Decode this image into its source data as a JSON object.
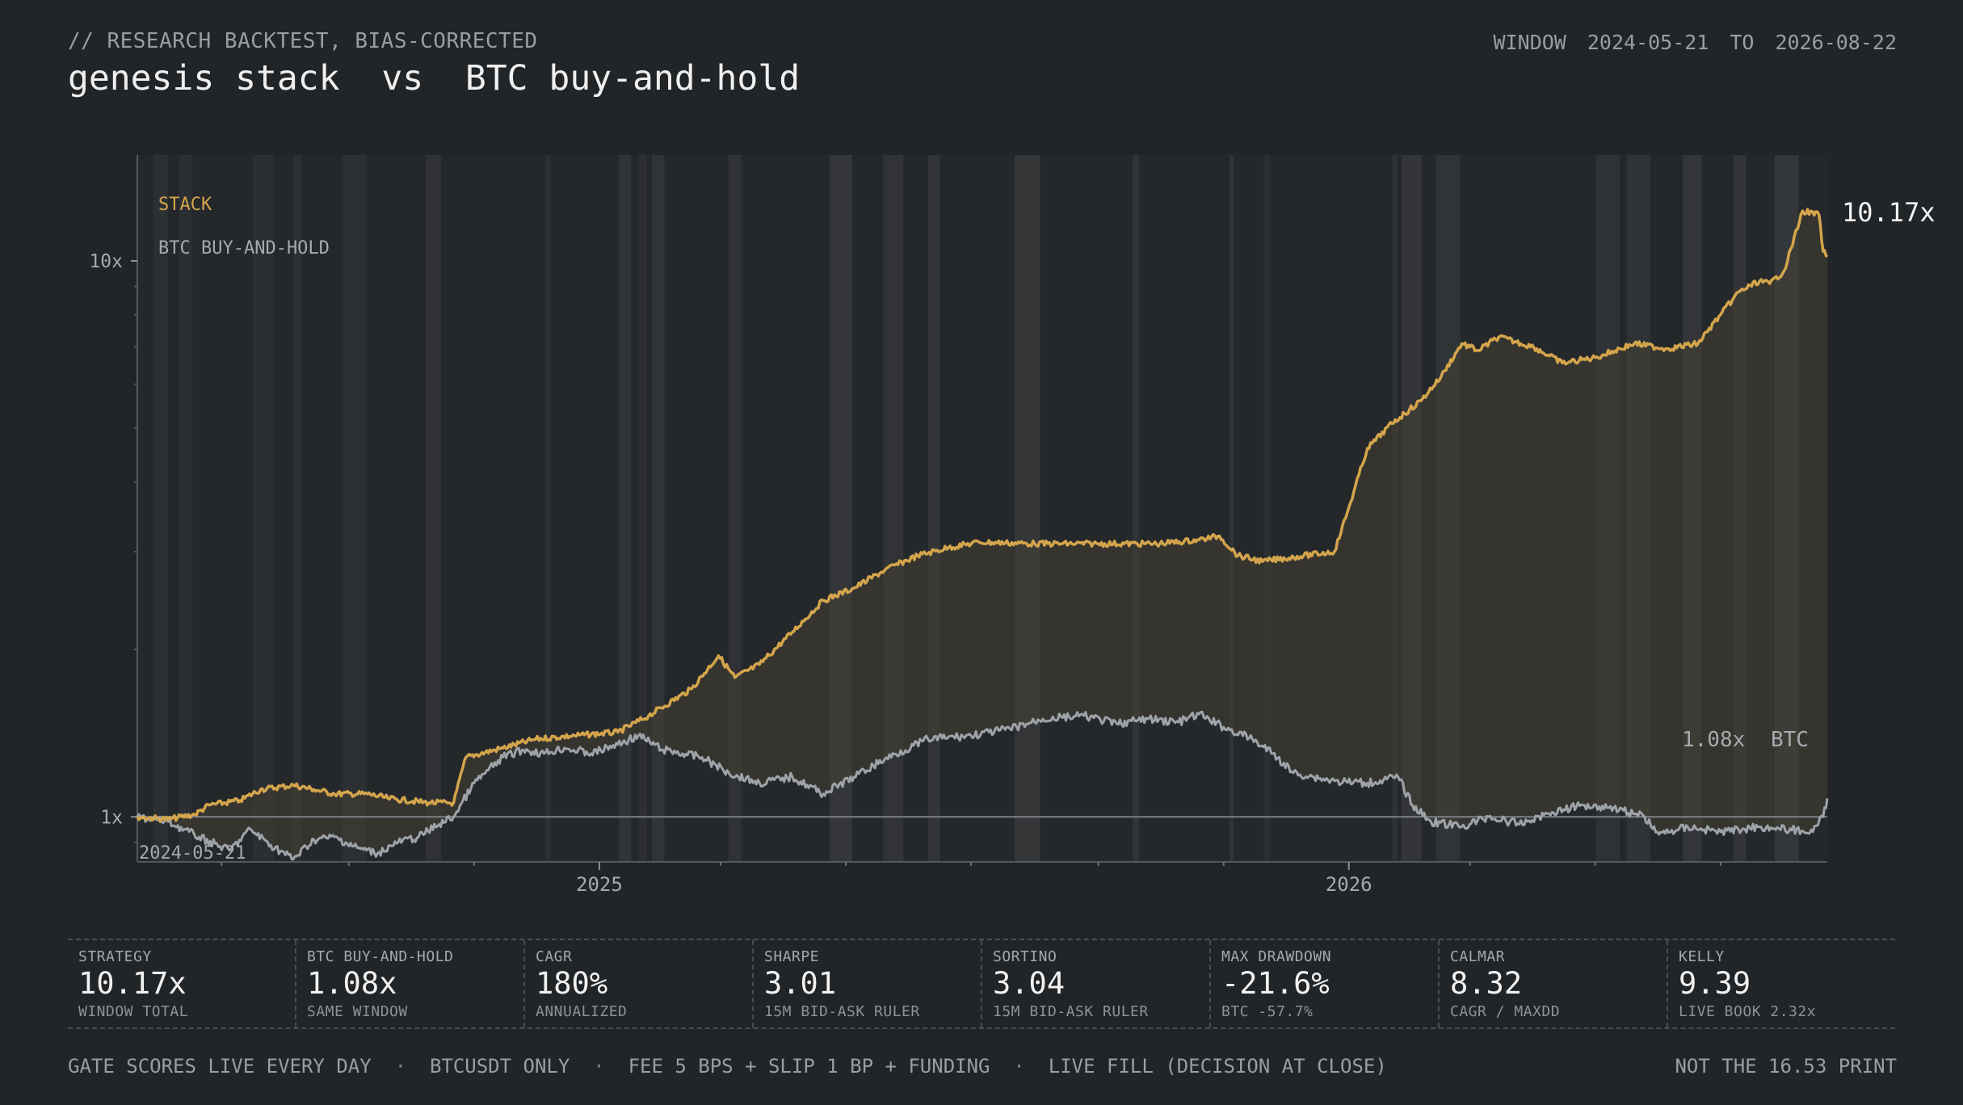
{
  "header": {
    "kicker": "// RESEARCH BACKTEST, BIAS-CORRECTED",
    "title": "genesis stack  vs  BTC buy-and-hold",
    "window_label": "WINDOW",
    "window_start": "2024-05-21",
    "window_to": "TO",
    "window_end": "2026-08-22"
  },
  "colors": {
    "background": "#222528",
    "stack": "#d4a54c",
    "btc": "#9ea3a9",
    "regime_band": "#3a3c3f",
    "baseline": "#7d8186"
  },
  "chart_data": {
    "type": "line",
    "y_scale": "log",
    "ylim": [
      0.83,
      15.5
    ],
    "xlim": [
      "2024-05-21",
      "2026-08-22"
    ],
    "y_ticks": [
      {
        "value": 1,
        "label": "1x"
      },
      {
        "value": 10,
        "label": "10x"
      }
    ],
    "x_ticks": [
      {
        "date": "2025-01-01",
        "label": "2025"
      },
      {
        "date": "2026-01-01",
        "label": "2026"
      }
    ],
    "start_label": "2024-05-21",
    "legend": {
      "placement": "top-left",
      "entries": [
        "STACK",
        "BTC BUY-AND-HOLD"
      ]
    },
    "series": [
      {
        "name": "STACK",
        "end_label": "10.17x",
        "final": 10.17,
        "points": [
          [
            "2024-05-21",
            1.0
          ],
          [
            "2024-06-05",
            0.99
          ],
          [
            "2024-06-18",
            1.01
          ],
          [
            "2024-06-25",
            1.05
          ],
          [
            "2024-07-10",
            1.07
          ],
          [
            "2024-07-20",
            1.12
          ],
          [
            "2024-08-05",
            1.14
          ],
          [
            "2024-08-15",
            1.12
          ],
          [
            "2024-08-25",
            1.1
          ],
          [
            "2024-09-10",
            1.1
          ],
          [
            "2024-09-20",
            1.08
          ],
          [
            "2024-10-10",
            1.06
          ],
          [
            "2024-10-22",
            1.06
          ],
          [
            "2024-10-28",
            1.28
          ],
          [
            "2024-11-15",
            1.33
          ],
          [
            "2024-12-01",
            1.38
          ],
          [
            "2024-12-20",
            1.4
          ],
          [
            "2025-01-10",
            1.42
          ],
          [
            "2025-01-25",
            1.52
          ],
          [
            "2025-02-15",
            1.7
          ],
          [
            "2025-02-28",
            1.95
          ],
          [
            "2025-03-08",
            1.78
          ],
          [
            "2025-03-20",
            1.88
          ],
          [
            "2025-04-05",
            2.15
          ],
          [
            "2025-04-20",
            2.45
          ],
          [
            "2025-05-05",
            2.58
          ],
          [
            "2025-05-20",
            2.78
          ],
          [
            "2025-06-05",
            2.95
          ],
          [
            "2025-06-20",
            3.05
          ],
          [
            "2025-07-05",
            3.12
          ],
          [
            "2025-08-01",
            3.1
          ],
          [
            "2025-09-01",
            3.1
          ],
          [
            "2025-10-01",
            3.1
          ],
          [
            "2025-10-20",
            3.15
          ],
          [
            "2025-10-30",
            3.2
          ],
          [
            "2025-11-08",
            2.95
          ],
          [
            "2025-11-20",
            2.88
          ],
          [
            "2025-12-10",
            2.95
          ],
          [
            "2025-12-25",
            3.0
          ],
          [
            "2026-01-01",
            3.6
          ],
          [
            "2026-01-10",
            4.6
          ],
          [
            "2026-01-22",
            5.1
          ],
          [
            "2026-02-05",
            5.6
          ],
          [
            "2026-02-15",
            6.2
          ],
          [
            "2026-02-25",
            7.1
          ],
          [
            "2026-03-05",
            6.9
          ],
          [
            "2026-03-15",
            7.3
          ],
          [
            "2026-04-01",
            7.0
          ],
          [
            "2026-04-15",
            6.55
          ],
          [
            "2026-05-01",
            6.7
          ],
          [
            "2026-05-20",
            7.1
          ],
          [
            "2026-06-05",
            6.95
          ],
          [
            "2026-06-20",
            7.1
          ],
          [
            "2026-07-01",
            8.0
          ],
          [
            "2026-07-10",
            8.8
          ],
          [
            "2026-07-20",
            9.2
          ],
          [
            "2026-07-25",
            9.1
          ],
          [
            "2026-08-01",
            9.6
          ],
          [
            "2026-08-10",
            12.3
          ],
          [
            "2026-08-18",
            12.1
          ],
          [
            "2026-08-20",
            10.4
          ],
          [
            "2026-08-22",
            10.17
          ]
        ]
      },
      {
        "name": "BTC",
        "end_label": "1.08x",
        "final": 1.08,
        "points": [
          [
            "2024-05-21",
            1.0
          ],
          [
            "2024-06-05",
            0.98
          ],
          [
            "2024-06-20",
            0.92
          ],
          [
            "2024-07-05",
            0.87
          ],
          [
            "2024-07-15",
            0.95
          ],
          [
            "2024-07-25",
            0.89
          ],
          [
            "2024-08-05",
            0.84
          ],
          [
            "2024-08-15",
            0.91
          ],
          [
            "2024-08-25",
            0.92
          ],
          [
            "2024-09-05",
            0.88
          ],
          [
            "2024-09-15",
            0.86
          ],
          [
            "2024-09-25",
            0.9
          ],
          [
            "2024-10-05",
            0.92
          ],
          [
            "2024-10-15",
            0.97
          ],
          [
            "2024-10-22",
            1.0
          ],
          [
            "2024-11-01",
            1.15
          ],
          [
            "2024-11-15",
            1.28
          ],
          [
            "2024-11-25",
            1.32
          ],
          [
            "2024-12-05",
            1.3
          ],
          [
            "2024-12-15",
            1.33
          ],
          [
            "2024-12-28",
            1.3
          ],
          [
            "2025-01-10",
            1.35
          ],
          [
            "2025-01-20",
            1.4
          ],
          [
            "2025-02-01",
            1.32
          ],
          [
            "2025-02-20",
            1.28
          ],
          [
            "2025-03-05",
            1.2
          ],
          [
            "2025-03-20",
            1.15
          ],
          [
            "2025-04-05",
            1.18
          ],
          [
            "2025-04-20",
            1.1
          ],
          [
            "2025-05-05",
            1.18
          ],
          [
            "2025-05-20",
            1.27
          ],
          [
            "2025-06-10",
            1.38
          ],
          [
            "2025-07-01",
            1.4
          ],
          [
            "2025-07-20",
            1.44
          ],
          [
            "2025-08-05",
            1.5
          ],
          [
            "2025-08-25",
            1.52
          ],
          [
            "2025-09-10",
            1.47
          ],
          [
            "2025-09-25",
            1.5
          ],
          [
            "2025-10-10",
            1.48
          ],
          [
            "2025-10-20",
            1.53
          ],
          [
            "2025-11-01",
            1.45
          ],
          [
            "2025-11-15",
            1.38
          ],
          [
            "2025-11-25",
            1.3
          ],
          [
            "2025-12-05",
            1.2
          ],
          [
            "2025-12-15",
            1.18
          ],
          [
            "2025-12-25",
            1.16
          ],
          [
            "2026-01-10",
            1.15
          ],
          [
            "2026-01-25",
            1.18
          ],
          [
            "2026-02-01",
            1.05
          ],
          [
            "2026-02-10",
            0.98
          ],
          [
            "2026-02-25",
            0.96
          ],
          [
            "2026-03-10",
            1.0
          ],
          [
            "2026-03-25",
            0.97
          ],
          [
            "2026-04-10",
            1.02
          ],
          [
            "2026-04-25",
            1.05
          ],
          [
            "2026-05-10",
            1.04
          ],
          [
            "2026-05-25",
            1.0
          ],
          [
            "2026-06-01",
            0.93
          ],
          [
            "2026-06-15",
            0.96
          ],
          [
            "2026-07-01",
            0.94
          ],
          [
            "2026-07-20",
            0.96
          ],
          [
            "2026-08-15",
            0.94
          ],
          [
            "2026-08-20",
            1.0
          ],
          [
            "2026-08-22",
            1.08
          ]
        ]
      }
    ]
  },
  "stats": [
    {
      "label": "STRATEGY",
      "value": "10.17x",
      "sub": "WINDOW TOTAL"
    },
    {
      "label": "BTC BUY-AND-HOLD",
      "value": "1.08x",
      "sub": "SAME WINDOW"
    },
    {
      "label": "CAGR",
      "value": "180%",
      "sub": "ANNUALIZED"
    },
    {
      "label": "SHARPE",
      "value": "3.01",
      "sub": "15M BID-ASK RULER"
    },
    {
      "label": "SORTINO",
      "value": "3.04",
      "sub": "15M BID-ASK RULER"
    },
    {
      "label": "MAX DRAWDOWN",
      "value": "-21.6%",
      "sub": "BTC -57.7%"
    },
    {
      "label": "CALMAR",
      "value": "8.32",
      "sub": "CAGR / MAXDD"
    },
    {
      "label": "KELLY",
      "value": "9.39",
      "sub": "LIVE BOOK 2.32x"
    }
  ],
  "footer": {
    "items": [
      "GATE SCORES LIVE EVERY DAY",
      "BTCUSDT ONLY",
      "FEE 5 BPS + SLIP 1 BP + FUNDING",
      "LIVE FILL (DECISION AT CLOSE)"
    ],
    "separator": "·",
    "note": "NOT THE 16.53 PRINT"
  }
}
